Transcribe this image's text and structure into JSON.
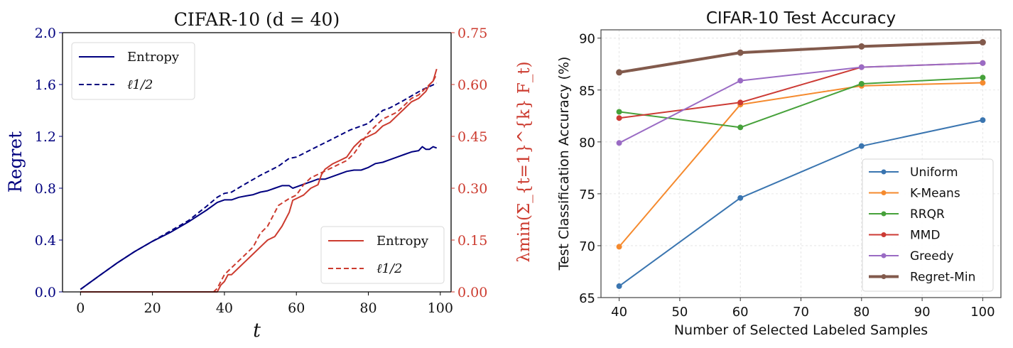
{
  "chart_data": [
    {
      "type": "line",
      "title": "CIFAR-10 (d = 40)",
      "xlabel": "t",
      "ylabel": "Regret",
      "y2label": "λmin(Σ_{t=1}^{k} F_t)",
      "xlim": [
        -5,
        103
      ],
      "ylim": [
        0,
        2.0
      ],
      "y2lim": [
        0,
        0.75
      ],
      "xticks": [
        "0",
        "20",
        "40",
        "60",
        "80",
        "100"
      ],
      "xtick_values": [
        0,
        20,
        40,
        60,
        80,
        100
      ],
      "yticks": [
        "0.0",
        "0.4",
        "0.8",
        "1.2",
        "1.6",
        "2.0"
      ],
      "ytick_values": [
        0,
        0.4,
        0.8,
        1.2,
        1.6,
        2.0
      ],
      "y2ticks": [
        "0.00",
        "0.15",
        "0.30",
        "0.45",
        "0.60",
        "0.75"
      ],
      "y2tick_values": [
        0,
        0.15,
        0.3,
        0.45,
        0.6,
        0.75
      ],
      "grid": false,
      "colors": {
        "left": "#00007f",
        "right": "#cc3b2f"
      },
      "legends": [
        {
          "placement": "upper-left",
          "entries": [
            {
              "label": "Entropy",
              "style": "solid",
              "axis": "left"
            },
            {
              "label": "ℓ1/2",
              "style": "dashed",
              "axis": "left"
            }
          ]
        },
        {
          "placement": "lower-right",
          "entries": [
            {
              "label": "Entropy",
              "style": "solid",
              "axis": "right"
            },
            {
              "label": "ℓ1/2",
              "style": "dashed",
              "axis": "right"
            }
          ]
        }
      ],
      "series": [
        {
          "name": "Entropy",
          "axis": "left",
          "style": "solid",
          "x": [
            0,
            5,
            10,
            15,
            20,
            25,
            30,
            35,
            38,
            40,
            42,
            44,
            46,
            48,
            50,
            52,
            54,
            56,
            58,
            59,
            60,
            62,
            64,
            66,
            68,
            70,
            72,
            74,
            76,
            78,
            80,
            82,
            84,
            86,
            88,
            90,
            92,
            94,
            95,
            96,
            97,
            98,
            99
          ],
          "y": [
            0.02,
            0.12,
            0.22,
            0.31,
            0.39,
            0.46,
            0.54,
            0.63,
            0.69,
            0.71,
            0.71,
            0.73,
            0.74,
            0.75,
            0.77,
            0.78,
            0.8,
            0.82,
            0.82,
            0.8,
            0.81,
            0.83,
            0.85,
            0.87,
            0.87,
            0.89,
            0.91,
            0.93,
            0.94,
            0.94,
            0.96,
            0.99,
            1.0,
            1.02,
            1.04,
            1.06,
            1.08,
            1.09,
            1.12,
            1.1,
            1.1,
            1.12,
            1.11
          ]
        },
        {
          "name": "ℓ1/2",
          "axis": "left",
          "style": "dashed",
          "x": [
            0,
            5,
            10,
            15,
            20,
            25,
            30,
            35,
            38,
            40,
            42,
            45,
            50,
            55,
            58,
            60,
            65,
            70,
            75,
            80,
            84,
            86,
            90,
            95,
            99
          ],
          "y": [
            0.02,
            0.12,
            0.22,
            0.31,
            0.39,
            0.47,
            0.55,
            0.66,
            0.73,
            0.76,
            0.77,
            0.82,
            0.9,
            0.97,
            1.03,
            1.04,
            1.11,
            1.18,
            1.25,
            1.3,
            1.4,
            1.42,
            1.48,
            1.56,
            1.61
          ]
        },
        {
          "name": "Entropy",
          "axis": "right",
          "style": "solid",
          "x": [
            0,
            37,
            38,
            39,
            40,
            41,
            42,
            44,
            46,
            48,
            50,
            52,
            54,
            56,
            58,
            59,
            60,
            62,
            64,
            66,
            67,
            68,
            70,
            72,
            74,
            76,
            78,
            80,
            82,
            84,
            86,
            88,
            90,
            92,
            94,
            96,
            97,
            98,
            99
          ],
          "y": [
            0,
            0,
            0.0,
            0.02,
            0.03,
            0.05,
            0.05,
            0.07,
            0.09,
            0.11,
            0.13,
            0.15,
            0.16,
            0.19,
            0.23,
            0.265,
            0.27,
            0.28,
            0.3,
            0.31,
            0.34,
            0.355,
            0.37,
            0.38,
            0.39,
            0.42,
            0.44,
            0.45,
            0.46,
            0.48,
            0.49,
            0.51,
            0.53,
            0.55,
            0.56,
            0.58,
            0.6,
            0.61,
            0.645
          ]
        },
        {
          "name": "ℓ1/2",
          "axis": "right",
          "style": "dashed",
          "x": [
            0,
            37,
            38,
            40,
            42,
            44,
            46,
            48,
            50,
            52,
            55,
            58,
            60,
            62,
            64,
            66,
            68,
            70,
            72,
            74,
            76,
            78,
            80,
            82,
            84,
            86,
            88,
            90,
            92,
            94,
            96,
            98,
            99
          ],
          "y": [
            0,
            0,
            0.01,
            0.05,
            0.07,
            0.09,
            0.11,
            0.13,
            0.17,
            0.19,
            0.25,
            0.27,
            0.28,
            0.31,
            0.33,
            0.34,
            0.35,
            0.36,
            0.37,
            0.38,
            0.4,
            0.43,
            0.46,
            0.48,
            0.5,
            0.51,
            0.52,
            0.54,
            0.56,
            0.57,
            0.59,
            0.61,
            0.63
          ]
        }
      ]
    },
    {
      "type": "line",
      "title": "CIFAR-10 Test Accuracy",
      "xlabel": "Number of Selected Labeled Samples",
      "ylabel": "Test Classification Accuracy (%)",
      "xlim": [
        37,
        103
      ],
      "ylim": [
        65,
        90.8
      ],
      "xticks": [
        "40",
        "50",
        "60",
        "70",
        "80",
        "90",
        "100"
      ],
      "xtick_values": [
        40,
        50,
        60,
        70,
        80,
        90,
        100
      ],
      "yticks": [
        "65",
        "70",
        "75",
        "80",
        "85",
        "90"
      ],
      "ytick_values": [
        65,
        70,
        75,
        80,
        85,
        90
      ],
      "grid": true,
      "legend_placement": "lower-right",
      "x": [
        40,
        60,
        80,
        100
      ],
      "series": [
        {
          "name": "Uniform",
          "color": "#3a75b0",
          "values": [
            66.1,
            74.6,
            79.6,
            82.1
          ]
        },
        {
          "name": "K-Means",
          "color": "#f58a2e",
          "values": [
            69.9,
            83.6,
            85.4,
            85.7
          ]
        },
        {
          "name": "RRQR",
          "color": "#46a13a",
          "values": [
            82.9,
            81.4,
            85.6,
            86.2
          ]
        },
        {
          "name": "MMD",
          "color": "#cc3a34",
          "values": [
            82.3,
            83.8,
            87.2,
            87.6
          ]
        },
        {
          "name": "Greedy",
          "color": "#9a6bc4",
          "values": [
            79.9,
            85.9,
            87.2,
            87.6
          ]
        },
        {
          "name": "Regret-Min",
          "color": "#825a4c",
          "values": [
            86.7,
            88.6,
            89.2,
            89.6
          ],
          "thick": true
        }
      ]
    }
  ]
}
